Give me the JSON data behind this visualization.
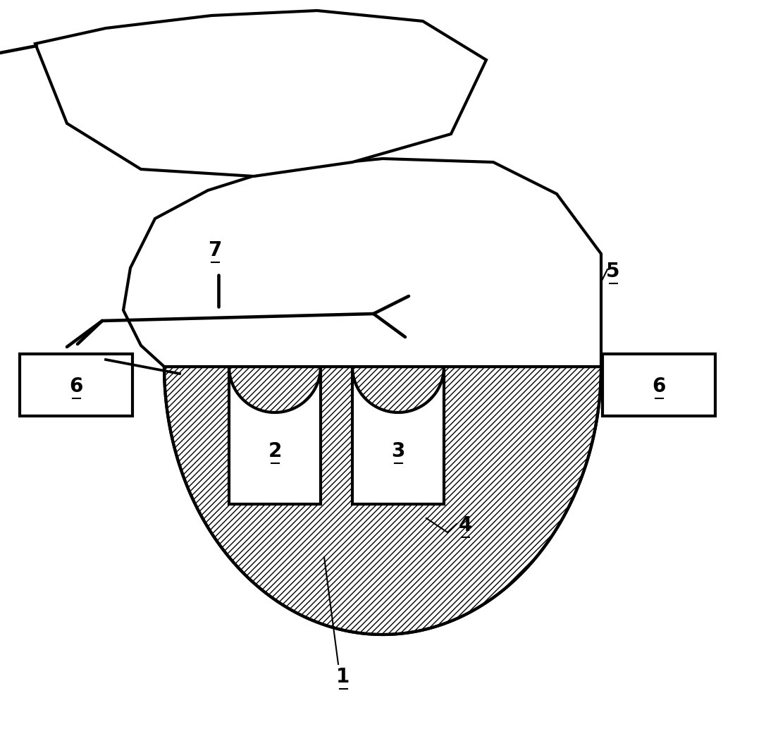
{
  "bg_color": "#ffffff",
  "line_color": "#000000",
  "lw": 3.0,
  "lw_thin": 1.5,
  "figsize": [
    10.87,
    10.68
  ],
  "dpi": 100,
  "label_fontsize": 20
}
